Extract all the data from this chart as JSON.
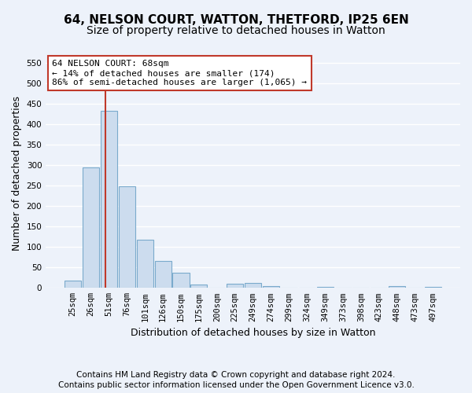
{
  "title": "64, NELSON COURT, WATTON, THETFORD, IP25 6EN",
  "subtitle": "Size of property relative to detached houses in Watton",
  "xlabel": "Distribution of detached houses by size in Watton",
  "ylabel": "Number of detached properties",
  "footer_line1": "Contains HM Land Registry data © Crown copyright and database right 2024.",
  "footer_line2": "Contains public sector information licensed under the Open Government Licence v3.0.",
  "bar_labels": [
    "25sqm",
    "26sqm",
    "51sqm",
    "76sqm",
    "101sqm",
    "126sqm",
    "150sqm",
    "175sqm",
    "200sqm",
    "225sqm",
    "249sqm",
    "274sqm",
    "299sqm",
    "324sqm",
    "349sqm",
    "373sqm",
    "398sqm",
    "423sqm",
    "448sqm",
    "473sqm",
    "497sqm"
  ],
  "bar_values": [
    18,
    295,
    433,
    248,
    118,
    65,
    37,
    9,
    0,
    10,
    12,
    5,
    0,
    0,
    3,
    0,
    0,
    0,
    4,
    0,
    3
  ],
  "bar_color": "#ccdcee",
  "bar_edge_color": "#7aaacc",
  "ylim": [
    0,
    560
  ],
  "yticks": [
    0,
    50,
    100,
    150,
    200,
    250,
    300,
    350,
    400,
    450,
    500,
    550
  ],
  "property_line_x": 1.82,
  "vline_color": "#c0392b",
  "annotation_text": "64 NELSON COURT: 68sqm\n← 14% of detached houses are smaller (174)\n86% of semi-detached houses are larger (1,065) →",
  "annotation_box_color": "#ffffff",
  "annotation_box_edge_color": "#c0392b",
  "background_color": "#edf2fa",
  "grid_color": "#ffffff",
  "title_fontsize": 11,
  "subtitle_fontsize": 10,
  "label_fontsize": 9,
  "tick_fontsize": 7.5,
  "annotation_fontsize": 8,
  "footer_fontsize": 7.5
}
